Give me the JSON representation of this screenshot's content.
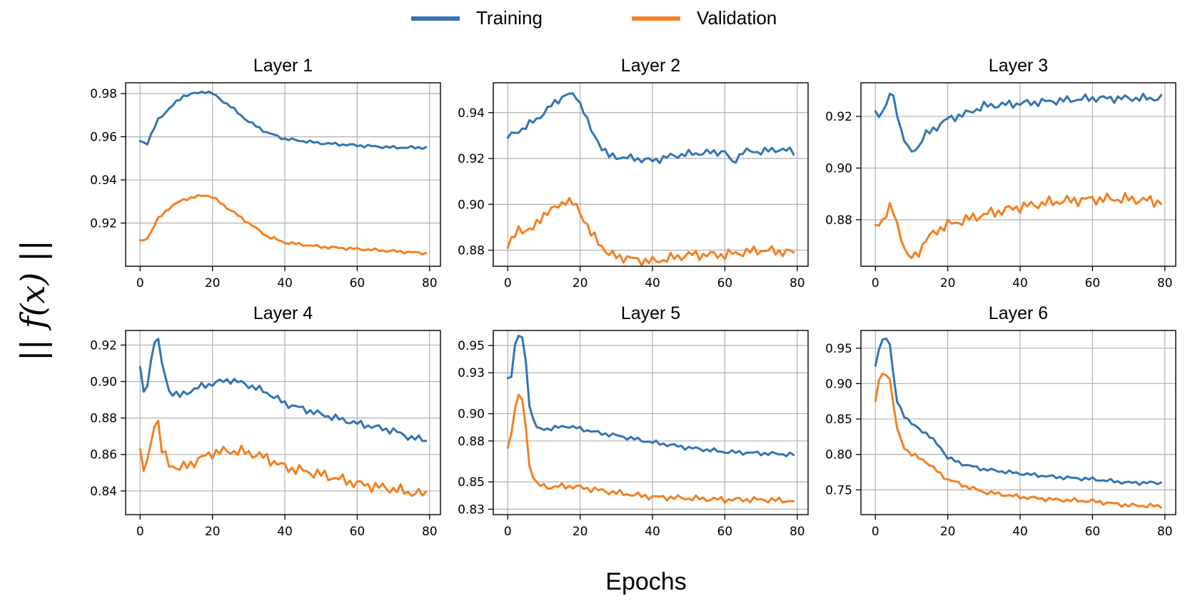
{
  "figure": {
    "ylabel": "|| f(x) ||",
    "xlabel": "Epochs"
  },
  "legend": [
    {
      "label": "Training",
      "color": "#3274b5"
    },
    {
      "label": "Validation",
      "color": "#f57f20"
    }
  ],
  "chart_data": [
    {
      "type": "line",
      "title": "Layer 1",
      "xlim": [
        -4,
        83
      ],
      "ylim": [
        0.9,
        0.985
      ],
      "xticks": [
        0,
        20,
        40,
        60,
        80
      ],
      "yticks": [
        0.92,
        0.94,
        0.96,
        0.98
      ],
      "ytick_labels": [
        "0.92",
        "0.94",
        "0.96",
        "0.98"
      ],
      "grid": true,
      "series": [
        {
          "name": "Training",
          "anchors": [
            [
              0,
              0.958
            ],
            [
              2,
              0.957
            ],
            [
              5,
              0.968
            ],
            [
              8,
              0.973
            ],
            [
              12,
              0.979
            ],
            [
              18,
              0.981
            ],
            [
              20,
              0.98
            ],
            [
              25,
              0.974
            ],
            [
              30,
              0.967
            ],
            [
              35,
              0.962
            ],
            [
              40,
              0.959
            ],
            [
              50,
              0.957
            ],
            [
              60,
              0.956
            ],
            [
              70,
              0.955
            ],
            [
              79,
              0.955
            ]
          ],
          "amp": 0.0008
        },
        {
          "name": "Validation",
          "anchors": [
            [
              0,
              0.912
            ],
            [
              2,
              0.913
            ],
            [
              5,
              0.922
            ],
            [
              8,
              0.927
            ],
            [
              12,
              0.931
            ],
            [
              18,
              0.933
            ],
            [
              20,
              0.932
            ],
            [
              25,
              0.926
            ],
            [
              30,
              0.92
            ],
            [
              35,
              0.914
            ],
            [
              40,
              0.911
            ],
            [
              50,
              0.909
            ],
            [
              60,
              0.908
            ],
            [
              70,
              0.907
            ],
            [
              79,
              0.906
            ]
          ],
          "amp": 0.0008
        }
      ]
    },
    {
      "type": "line",
      "title": "Layer 2",
      "xlim": [
        -4,
        83
      ],
      "ylim": [
        0.873,
        0.953
      ],
      "xticks": [
        0,
        20,
        40,
        60,
        80
      ],
      "yticks": [
        0.88,
        0.9,
        0.92,
        0.94
      ],
      "ytick_labels": [
        "0.88",
        "0.90",
        "0.92",
        "0.94"
      ],
      "grid": true,
      "series": [
        {
          "name": "Training",
          "anchors": [
            [
              0,
              0.929
            ],
            [
              4,
              0.933
            ],
            [
              8,
              0.937
            ],
            [
              12,
              0.943
            ],
            [
              16,
              0.948
            ],
            [
              19,
              0.947
            ],
            [
              21,
              0.941
            ],
            [
              23,
              0.932
            ],
            [
              26,
              0.925
            ],
            [
              28,
              0.921
            ],
            [
              35,
              0.92
            ],
            [
              40,
              0.919
            ],
            [
              45,
              0.921
            ],
            [
              50,
              0.922
            ],
            [
              60,
              0.923
            ],
            [
              62,
              0.918
            ],
            [
              65,
              0.923
            ],
            [
              70,
              0.923
            ],
            [
              75,
              0.924
            ],
            [
              79,
              0.923
            ]
          ],
          "amp": 0.0018
        },
        {
          "name": "Validation",
          "anchors": [
            [
              0,
              0.881
            ],
            [
              3,
              0.889
            ],
            [
              7,
              0.889
            ],
            [
              10,
              0.896
            ],
            [
              13,
              0.898
            ],
            [
              16,
              0.902
            ],
            [
              19,
              0.899
            ],
            [
              21,
              0.894
            ],
            [
              23,
              0.887
            ],
            [
              26,
              0.882
            ],
            [
              28,
              0.878
            ],
            [
              35,
              0.876
            ],
            [
              40,
              0.875
            ],
            [
              50,
              0.878
            ],
            [
              60,
              0.878
            ],
            [
              70,
              0.88
            ],
            [
              79,
              0.879
            ]
          ],
          "amp": 0.0025
        }
      ]
    },
    {
      "type": "line",
      "title": "Layer 3",
      "xlim": [
        -4,
        83
      ],
      "ylim": [
        0.862,
        0.933
      ],
      "xticks": [
        0,
        20,
        40,
        60,
        80
      ],
      "yticks": [
        0.88,
        0.9,
        0.92
      ],
      "ytick_labels": [
        "0.88",
        "0.90",
        "0.92"
      ],
      "grid": true,
      "series": [
        {
          "name": "Training",
          "anchors": [
            [
              0,
              0.922
            ],
            [
              2,
              0.921
            ],
            [
              4,
              0.928
            ],
            [
              5,
              0.928
            ],
            [
              7,
              0.915
            ],
            [
              9,
              0.907
            ],
            [
              11,
              0.907
            ],
            [
              14,
              0.913
            ],
            [
              17,
              0.916
            ],
            [
              20,
              0.919
            ],
            [
              25,
              0.921
            ],
            [
              30,
              0.924
            ],
            [
              40,
              0.925
            ],
            [
              50,
              0.926
            ],
            [
              60,
              0.927
            ],
            [
              70,
              0.927
            ],
            [
              79,
              0.927
            ]
          ],
          "amp": 0.0018
        },
        {
          "name": "Validation",
          "anchors": [
            [
              0,
              0.878
            ],
            [
              2,
              0.88
            ],
            [
              4,
              0.884
            ],
            [
              5,
              0.883
            ],
            [
              7,
              0.874
            ],
            [
              9,
              0.865
            ],
            [
              11,
              0.866
            ],
            [
              14,
              0.872
            ],
            [
              17,
              0.876
            ],
            [
              20,
              0.878
            ],
            [
              25,
              0.88
            ],
            [
              30,
              0.882
            ],
            [
              40,
              0.885
            ],
            [
              50,
              0.887
            ],
            [
              60,
              0.888
            ],
            [
              70,
              0.888
            ],
            [
              79,
              0.887
            ]
          ],
          "amp": 0.0025
        }
      ]
    },
    {
      "type": "line",
      "title": "Layer 4",
      "xlim": [
        -4,
        83
      ],
      "ylim": [
        0.827,
        0.928
      ],
      "xticks": [
        0,
        20,
        40,
        60,
        80
      ],
      "yticks": [
        0.84,
        0.86,
        0.88,
        0.9,
        0.92
      ],
      "ytick_labels": [
        "0.84",
        "0.86",
        "0.88",
        "0.90",
        "0.92"
      ],
      "grid": true,
      "series": [
        {
          "name": "Training",
          "anchors": [
            [
              0,
              0.908
            ],
            [
              1,
              0.893
            ],
            [
              2,
              0.899
            ],
            [
              4,
              0.923
            ],
            [
              5,
              0.922
            ],
            [
              6,
              0.91
            ],
            [
              8,
              0.895
            ],
            [
              11,
              0.892
            ],
            [
              15,
              0.896
            ],
            [
              20,
              0.899
            ],
            [
              25,
              0.901
            ],
            [
              30,
              0.898
            ],
            [
              35,
              0.894
            ],
            [
              40,
              0.888
            ],
            [
              50,
              0.882
            ],
            [
              60,
              0.877
            ],
            [
              70,
              0.873
            ],
            [
              75,
              0.869
            ],
            [
              79,
              0.868
            ]
          ],
          "amp": 0.0022
        },
        {
          "name": "Validation",
          "anchors": [
            [
              0,
              0.863
            ],
            [
              1,
              0.851
            ],
            [
              2,
              0.856
            ],
            [
              4,
              0.878
            ],
            [
              5,
              0.877
            ],
            [
              6,
              0.862
            ],
            [
              8,
              0.855
            ],
            [
              11,
              0.852
            ],
            [
              15,
              0.856
            ],
            [
              20,
              0.861
            ],
            [
              25,
              0.862
            ],
            [
              30,
              0.861
            ],
            [
              35,
              0.858
            ],
            [
              40,
              0.853
            ],
            [
              50,
              0.849
            ],
            [
              60,
              0.844
            ],
            [
              70,
              0.841
            ],
            [
              75,
              0.839
            ],
            [
              79,
              0.838
            ]
          ],
          "amp": 0.0035
        }
      ]
    },
    {
      "type": "line",
      "title": "Layer 5",
      "xlim": [
        -4,
        83
      ],
      "ylim": [
        0.826,
        0.961
      ],
      "xticks": [
        0,
        20,
        40,
        60,
        80
      ],
      "yticks": [
        0.83,
        0.85,
        0.88,
        0.9,
        0.93,
        0.95
      ],
      "ytick_labels": [
        "0.83",
        "0.85",
        "0.88",
        "0.90",
        "0.93",
        "0.95"
      ],
      "grid": true,
      "series": [
        {
          "name": "Training",
          "anchors": [
            [
              0,
              0.926
            ],
            [
              1,
              0.927
            ],
            [
              2,
              0.95
            ],
            [
              3,
              0.957
            ],
            [
              4,
              0.955
            ],
            [
              5,
              0.94
            ],
            [
              6,
              0.905
            ],
            [
              8,
              0.889
            ],
            [
              12,
              0.889
            ],
            [
              16,
              0.891
            ],
            [
              20,
              0.889
            ],
            [
              25,
              0.886
            ],
            [
              30,
              0.884
            ],
            [
              40,
              0.879
            ],
            [
              50,
              0.875
            ],
            [
              60,
              0.872
            ],
            [
              70,
              0.871
            ],
            [
              79,
              0.87
            ]
          ],
          "amp": 0.0018
        },
        {
          "name": "Validation",
          "anchors": [
            [
              0,
              0.875
            ],
            [
              1,
              0.885
            ],
            [
              2,
              0.905
            ],
            [
              3,
              0.912
            ],
            [
              4,
              0.91
            ],
            [
              5,
              0.89
            ],
            [
              6,
              0.862
            ],
            [
              8,
              0.848
            ],
            [
              12,
              0.846
            ],
            [
              16,
              0.847
            ],
            [
              20,
              0.846
            ],
            [
              25,
              0.844
            ],
            [
              30,
              0.842
            ],
            [
              40,
              0.839
            ],
            [
              50,
              0.838
            ],
            [
              60,
              0.837
            ],
            [
              70,
              0.837
            ],
            [
              79,
              0.836
            ]
          ],
          "amp": 0.0025
        }
      ]
    },
    {
      "type": "line",
      "title": "Layer 6",
      "xlim": [
        -4,
        83
      ],
      "ylim": [
        0.715,
        0.975
      ],
      "xticks": [
        0,
        20,
        40,
        60,
        80
      ],
      "yticks": [
        0.75,
        0.8,
        0.85,
        0.9,
        0.95
      ],
      "ytick_labels": [
        "0.75",
        "0.80",
        "0.85",
        "0.90",
        "0.95"
      ],
      "grid": true,
      "series": [
        {
          "name": "Training",
          "anchors": [
            [
              0,
              0.925
            ],
            [
              1,
              0.95
            ],
            [
              2,
              0.962
            ],
            [
              3,
              0.965
            ],
            [
              4,
              0.955
            ],
            [
              5,
              0.91
            ],
            [
              6,
              0.875
            ],
            [
              8,
              0.855
            ],
            [
              10,
              0.843
            ],
            [
              14,
              0.83
            ],
            [
              18,
              0.81
            ],
            [
              20,
              0.795
            ],
            [
              25,
              0.785
            ],
            [
              30,
              0.779
            ],
            [
              40,
              0.773
            ],
            [
              50,
              0.768
            ],
            [
              60,
              0.765
            ],
            [
              70,
              0.76
            ],
            [
              79,
              0.76
            ]
          ],
          "amp": 0.003
        },
        {
          "name": "Validation",
          "anchors": [
            [
              0,
              0.875
            ],
            [
              1,
              0.905
            ],
            [
              2,
              0.913
            ],
            [
              3,
              0.915
            ],
            [
              4,
              0.905
            ],
            [
              5,
              0.87
            ],
            [
              6,
              0.835
            ],
            [
              8,
              0.81
            ],
            [
              10,
              0.8
            ],
            [
              14,
              0.79
            ],
            [
              18,
              0.772
            ],
            [
              20,
              0.765
            ],
            [
              25,
              0.755
            ],
            [
              30,
              0.747
            ],
            [
              40,
              0.74
            ],
            [
              50,
              0.736
            ],
            [
              60,
              0.734
            ],
            [
              70,
              0.728
            ],
            [
              79,
              0.727
            ]
          ],
          "amp": 0.0035
        }
      ]
    }
  ]
}
